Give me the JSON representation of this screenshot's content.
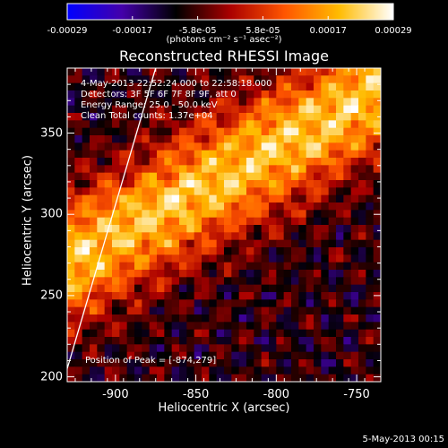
{
  "colorbar": {
    "ticks": [
      "-0.00029",
      "-0.00017",
      "-5.8e-05",
      "5.8e-05",
      "0.00017",
      "0.00029"
    ],
    "unit_label": "(photons cm⁻² s⁻¹ asec⁻²)"
  },
  "chart_data": {
    "type": "heatmap",
    "title": "Reconstructed RHESSI Image",
    "xlabel": "Heliocentric X (arcsec)",
    "ylabel": "Heliocentric Y (arcsec)",
    "xlim": [
      -930,
      -735
    ],
    "ylim": [
      197,
      390
    ],
    "x_ticks": [
      "-900",
      "-850",
      "-800",
      "-750"
    ],
    "y_ticks": [
      "200",
      "250",
      "300",
      "350"
    ],
    "x_tick_values": [
      -900,
      -850,
      -800,
      -750
    ],
    "y_tick_values": [
      200,
      250,
      300,
      350
    ],
    "color_range": [
      -0.00029,
      0.00029
    ],
    "colormap_stops": [
      "#0000ff",
      "#4400aa",
      "#000000",
      "#aa0000",
      "#ff5500",
      "#ffbb00",
      "#ffffff"
    ],
    "info_lines": [
      "4-May-2013 22:52:24.000 to 22:58:18.000",
      "Detectors: 3F 5F 6F 7F 8F 9F, att 0",
      "Energy Range: 25.0 - 50.0 keV",
      "Clean    Total counts: 1.37e+04"
    ],
    "peak_label": "Position of Peak = [-874,279]",
    "limb_line": [
      [
        -930,
        205
      ],
      [
        -875,
        390
      ]
    ],
    "line_color": "#ffffff"
  },
  "footer": {
    "date_stamp": "5-May-2013 00:15"
  }
}
